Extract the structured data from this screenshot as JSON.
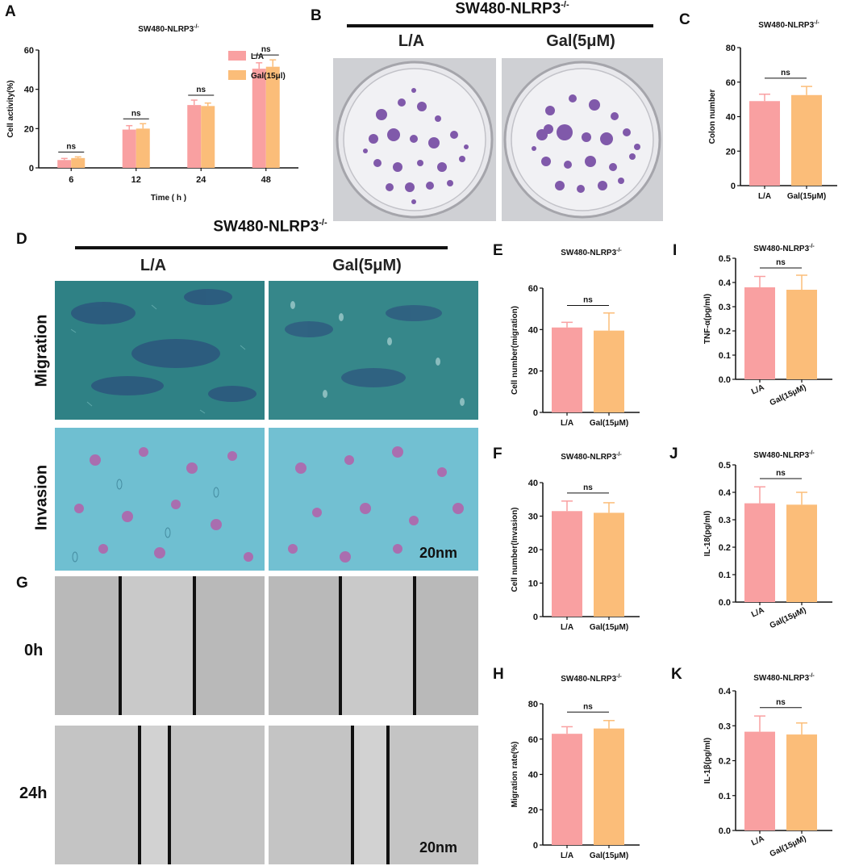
{
  "colors": {
    "la": "#f9a0a1",
    "gal": "#fbbd79",
    "axis": "#111111"
  },
  "panels": {
    "A": "A",
    "B": "B",
    "C": "C",
    "D": "D",
    "E": "E",
    "F": "F",
    "G": "G",
    "H": "H",
    "I": "I",
    "J": "J",
    "K": "K"
  },
  "headers": {
    "B": "SW480-NLRP3",
    "D": "SW480-NLRP3",
    "sup": "-/-"
  },
  "groups": {
    "B_left": "L/A",
    "B_right": "Gal(5μM)",
    "D_left": "L/A",
    "D_right": "Gal(5μM)"
  },
  "rows": {
    "migration": "Migration",
    "invasion": "Invasion",
    "t0": "0h",
    "t24": "24h"
  },
  "scale_bars": {
    "D": "20nm",
    "G": "20nm"
  },
  "chart_data": [
    {
      "id": "A",
      "type": "bar",
      "title": "SW480-NLRP3",
      "title_sup": "-/-",
      "xlabel": "Time ( h )",
      "ylabel": "Cell activity(%)",
      "categories": [
        "6",
        "12",
        "24",
        "48"
      ],
      "ylim": [
        0,
        60
      ],
      "yticks": [
        0,
        20,
        40,
        60
      ],
      "series": [
        {
          "name": "L/A",
          "values": [
            4,
            19.5,
            32,
            50.5
          ],
          "errors": [
            0.8,
            2,
            2.5,
            3
          ]
        },
        {
          "name": "Gal(15μl)",
          "values": [
            5,
            20,
            31.5,
            51.5
          ],
          "errors": [
            0.6,
            2.5,
            1.5,
            3.5
          ]
        }
      ],
      "annotations": [
        "ns",
        "ns",
        "ns",
        "ns"
      ],
      "legend": "top-right"
    },
    {
      "id": "C",
      "type": "bar",
      "title": "SW480-NLRP3",
      "title_sup": "-/-",
      "ylabel": "Colon number",
      "categories": [
        "L/A",
        "Gal(15μM)"
      ],
      "ylim": [
        0,
        80
      ],
      "yticks": [
        0,
        20,
        40,
        60,
        80
      ],
      "values": [
        49,
        52.5
      ],
      "errors": [
        4,
        5
      ],
      "annotation": "ns"
    },
    {
      "id": "E",
      "type": "bar",
      "title": "SW480-NLRP3",
      "title_sup": "-/-",
      "ylabel": "Cell number(migration)",
      "categories": [
        "L/A",
        "Gal(15μM)"
      ],
      "ylim": [
        0,
        60
      ],
      "yticks": [
        0,
        20,
        40,
        60
      ],
      "values": [
        41,
        39.5
      ],
      "errors": [
        2.5,
        8.5
      ],
      "annotation": "ns"
    },
    {
      "id": "F",
      "type": "bar",
      "title": "SW480-NLRP3",
      "title_sup": "-/-",
      "ylabel": "Cell number(Invasion)",
      "categories": [
        "L/A",
        "Gal(15μM)"
      ],
      "ylim": [
        0,
        40
      ],
      "yticks": [
        0,
        10,
        20,
        30,
        40
      ],
      "values": [
        31.5,
        31
      ],
      "errors": [
        3,
        3
      ],
      "annotation": "ns"
    },
    {
      "id": "H",
      "type": "bar",
      "title": "SW480-NLRP3",
      "title_sup": "-/-",
      "ylabel": "Migration rate(%)",
      "categories": [
        "L/A",
        "Gal(15μM)"
      ],
      "ylim": [
        0,
        80
      ],
      "yticks": [
        0,
        20,
        40,
        60,
        80
      ],
      "values": [
        63,
        66
      ],
      "errors": [
        4,
        4.5
      ],
      "annotation": "ns"
    },
    {
      "id": "I",
      "type": "bar",
      "title": "SW480-NLRP3",
      "title_sup": "-/-",
      "ylabel": "TNF-α(pg/ml)",
      "categories": [
        "L/A",
        "Gal(15μM)"
      ],
      "ylim": [
        0,
        0.5
      ],
      "yticks": [
        "0.0",
        "0.1",
        "0.2",
        "0.3",
        "0.4",
        "0.5"
      ],
      "values": [
        0.38,
        0.37
      ],
      "errors": [
        0.045,
        0.06
      ],
      "annotation": "ns",
      "rotated_xticks": true
    },
    {
      "id": "J",
      "type": "bar",
      "title": "SW480-NLRP3",
      "title_sup": "-/-",
      "ylabel": "IL-18(pg/ml)",
      "categories": [
        "L/A",
        "Gal(15μM)"
      ],
      "ylim": [
        0,
        0.5
      ],
      "yticks": [
        "0.0",
        "0.1",
        "0.2",
        "0.3",
        "0.4",
        "0.5"
      ],
      "values": [
        0.36,
        0.355
      ],
      "errors": [
        0.06,
        0.045
      ],
      "annotation": "ns",
      "rotated_xticks": true
    },
    {
      "id": "K",
      "type": "bar",
      "title": "SW480-NLRP3",
      "title_sup": "-/-",
      "ylabel": "IL-1β(pg/ml)",
      "categories": [
        "L/A",
        "Gal(15μM)"
      ],
      "ylim": [
        0,
        0.4
      ],
      "yticks": [
        "0.0",
        "0.1",
        "0.2",
        "0.3",
        "0.4"
      ],
      "values": [
        0.283,
        0.275
      ],
      "errors": [
        0.045,
        0.033
      ],
      "annotation": "ns",
      "rotated_xticks": true
    }
  ]
}
